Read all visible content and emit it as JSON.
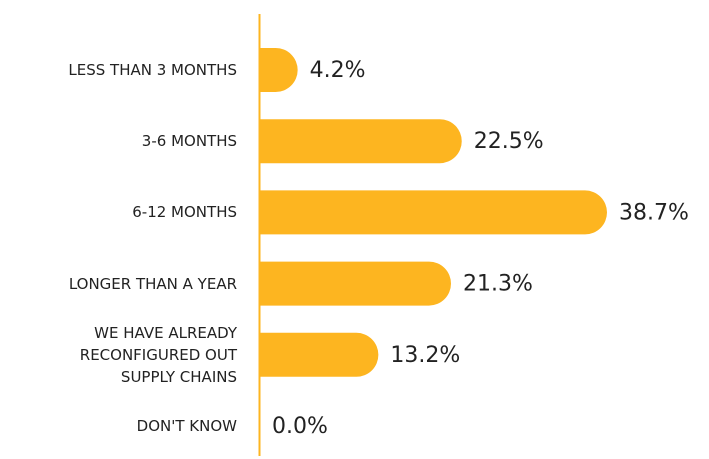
{
  "chart_data": {
    "type": "bar",
    "orientation": "horizontal",
    "categories": [
      "LESS THAN 3 MONTHS",
      "3-6 MONTHS",
      "6-12 MONTHS",
      "LONGER THAN A YEAR",
      "WE HAVE ALREADY\nRECONFIGURED OUT\nSUPPLY CHAINS",
      "DON'T KNOW"
    ],
    "values": [
      4.2,
      22.5,
      38.7,
      21.3,
      13.2,
      0.0
    ],
    "value_labels": [
      "4.2%",
      "22.5%",
      "38.7%",
      "21.3%",
      "13.2%",
      "0.0%"
    ],
    "color": "#fdb520"
  }
}
